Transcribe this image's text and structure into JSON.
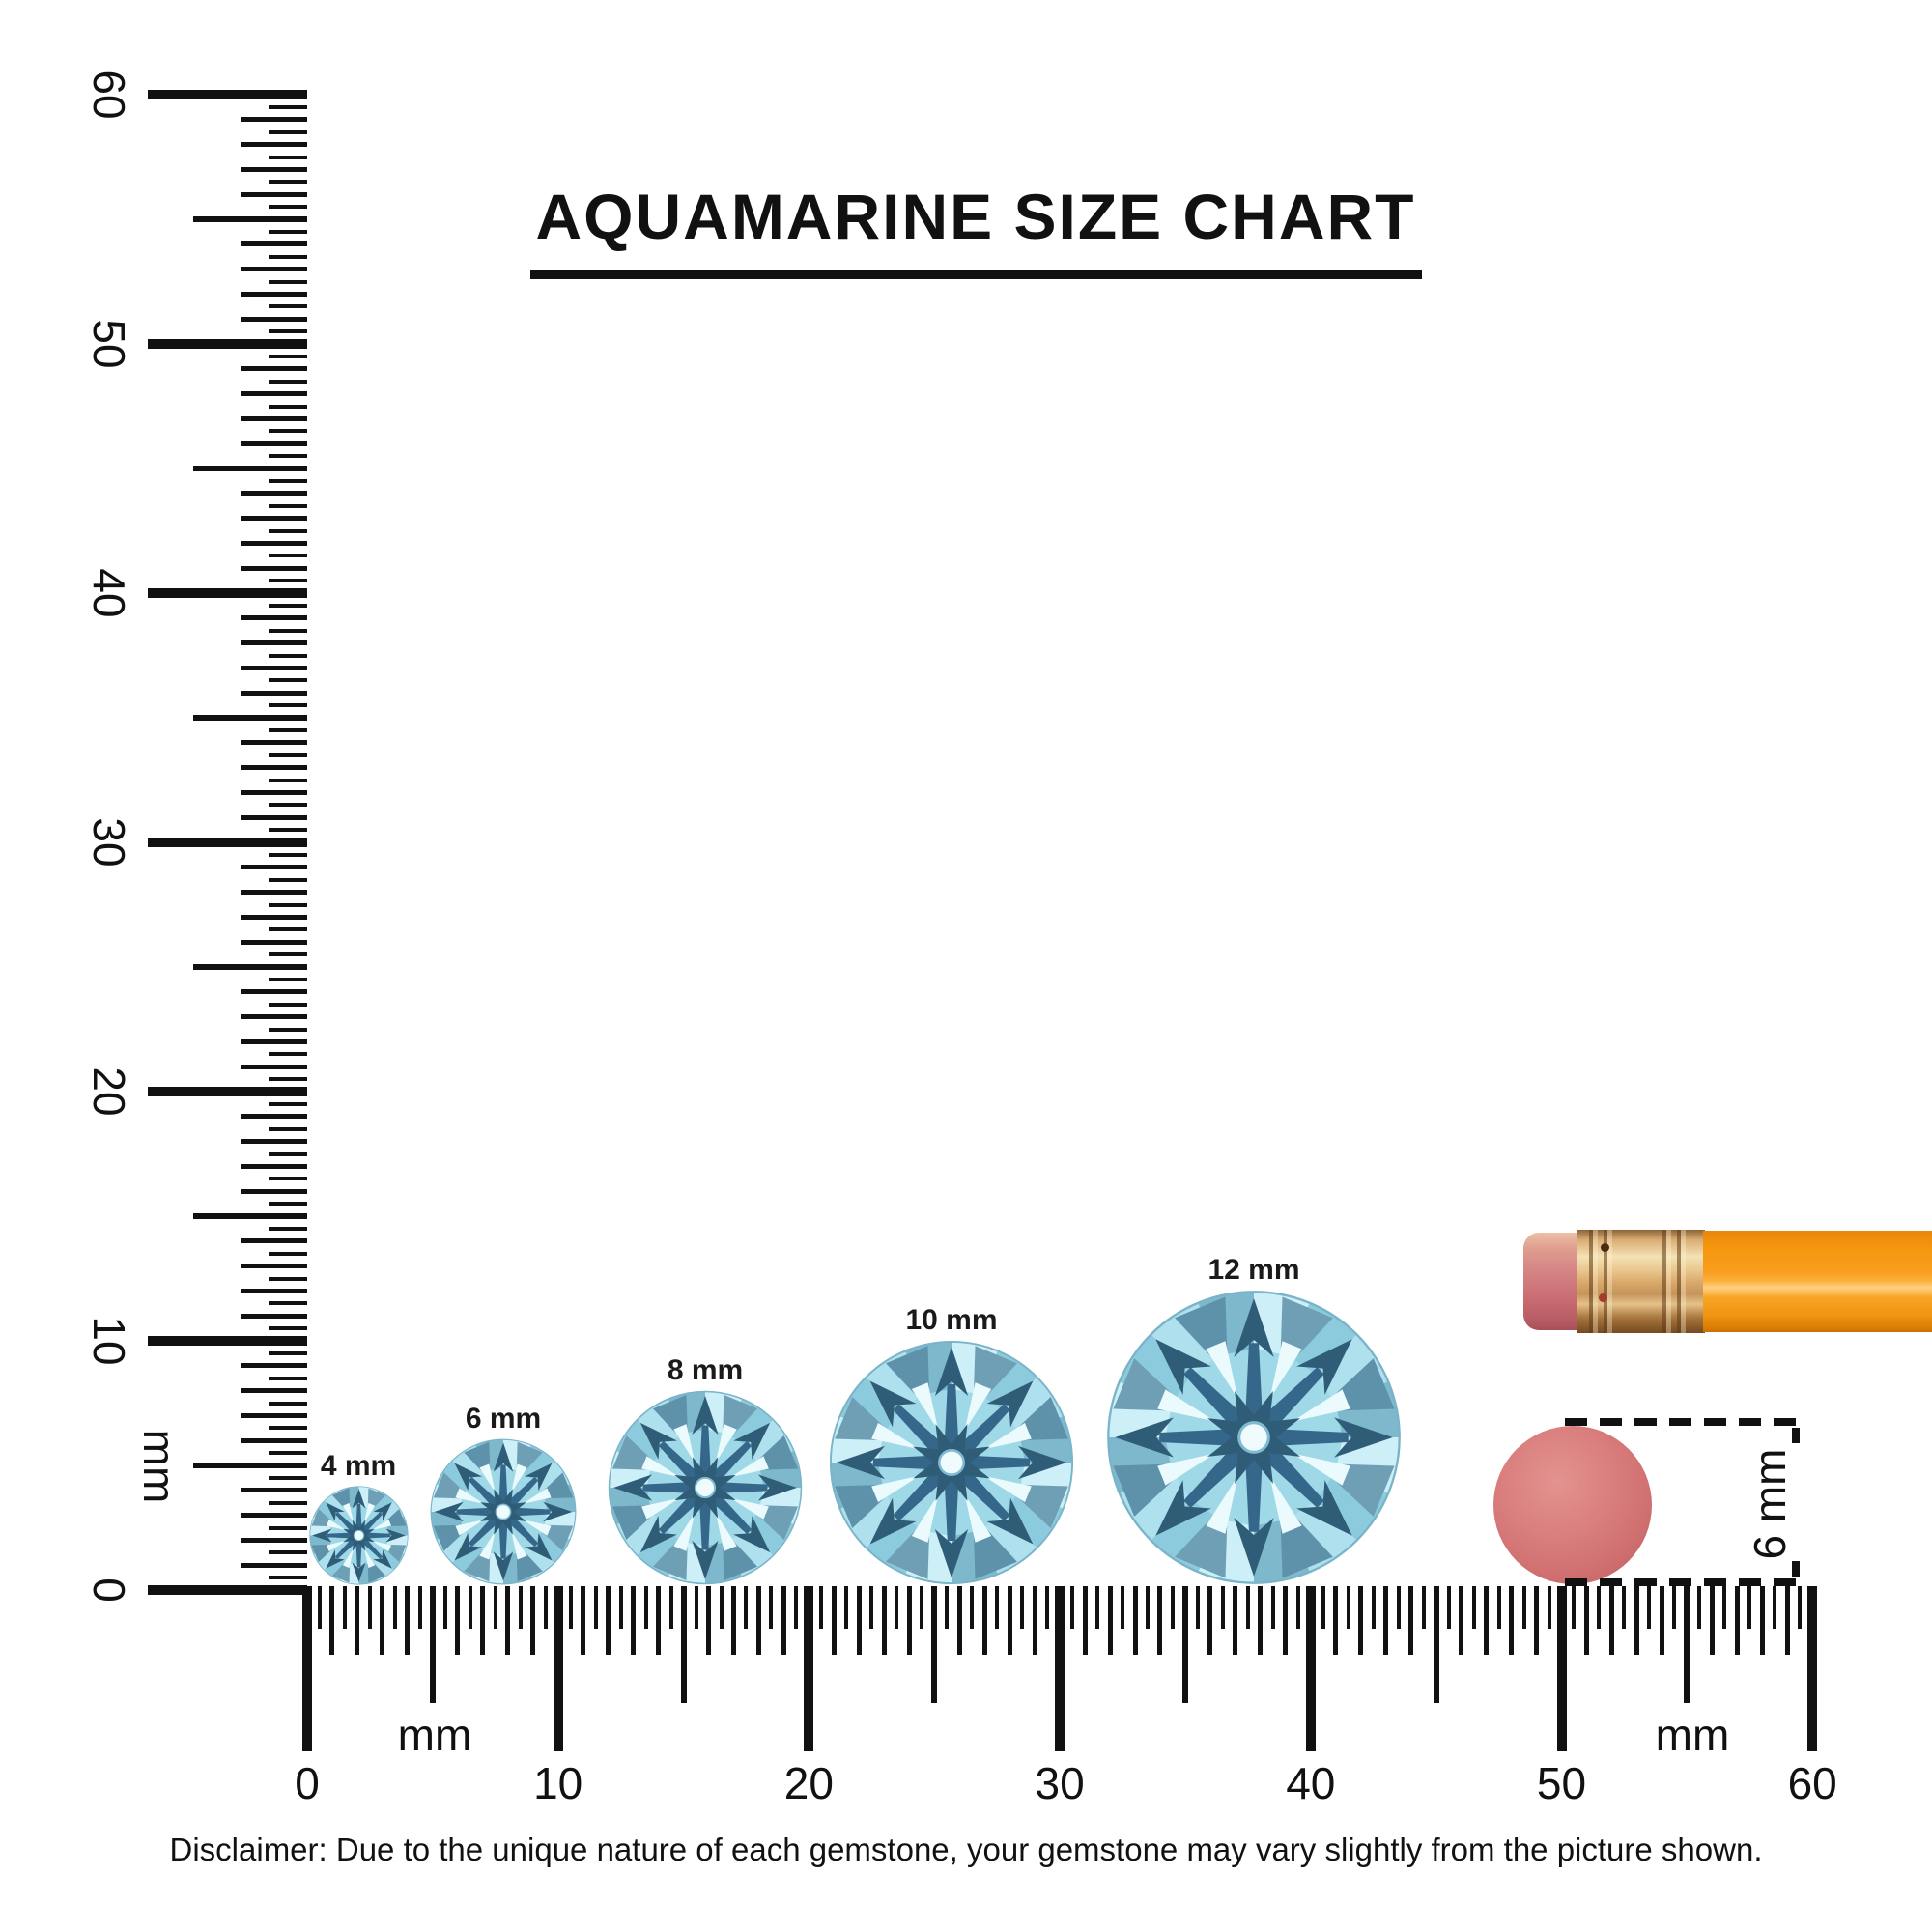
{
  "title": "AQUAMARINE SIZE CHART",
  "disclaimer": "Disclaimer: Due to the unique nature of each gemstone, your gemstone may vary slightly from the picture shown.",
  "vertical_ruler": {
    "unit_label": "mm",
    "min_mm": 0,
    "max_mm": 60,
    "tick_step_mm": 0.5,
    "numbers": [
      "0",
      "10",
      "20",
      "30",
      "40",
      "50",
      "60"
    ]
  },
  "horizontal_ruler": {
    "unit_label_left": "mm",
    "unit_label_right": "mm",
    "min_mm": 0,
    "max_mm": 60,
    "tick_step_mm": 0.5,
    "numbers": [
      "0",
      "10",
      "20",
      "30",
      "40",
      "50",
      "60"
    ]
  },
  "gems": [
    {
      "label": "4 mm",
      "size_mm": 4
    },
    {
      "label": "6 mm",
      "size_mm": 6
    },
    {
      "label": "8 mm",
      "size_mm": 8
    },
    {
      "label": "10 mm",
      "size_mm": 10
    },
    {
      "label": "12 mm",
      "size_mm": 12
    }
  ],
  "reference_objects": {
    "pencil": {
      "name": "pencil with eraser tip"
    },
    "eraser_dot": {
      "label": "6 mm",
      "size_mm": 6
    }
  },
  "colors": {
    "ink": "#111111",
    "gem_base": "#9fd9e8",
    "gem_pale": "#cdeff7",
    "gem_mid": "#8ccadd",
    "gem_steel": "#6f9fb4",
    "gem_dark": "#2f5d77",
    "gem_white": "#eafafd",
    "pencil_orange": "#f89d1e",
    "ferrule_gold": "#e9c58c",
    "eraser_pink": "#d48184",
    "dot_pink": "#d06f70"
  },
  "chart_data": {
    "type": "table",
    "title": "AQUAMARINE SIZE CHART",
    "categories": [
      "4 mm",
      "6 mm",
      "8 mm",
      "10 mm",
      "12 mm"
    ],
    "values": [
      4,
      6,
      8,
      10,
      12
    ],
    "xlabel": "mm",
    "ylabel": "mm",
    "x_range_mm": [
      0,
      60
    ],
    "y_range_mm": [
      0,
      60
    ],
    "reference_comparison": {
      "eraser_dot_mm": 6
    }
  }
}
